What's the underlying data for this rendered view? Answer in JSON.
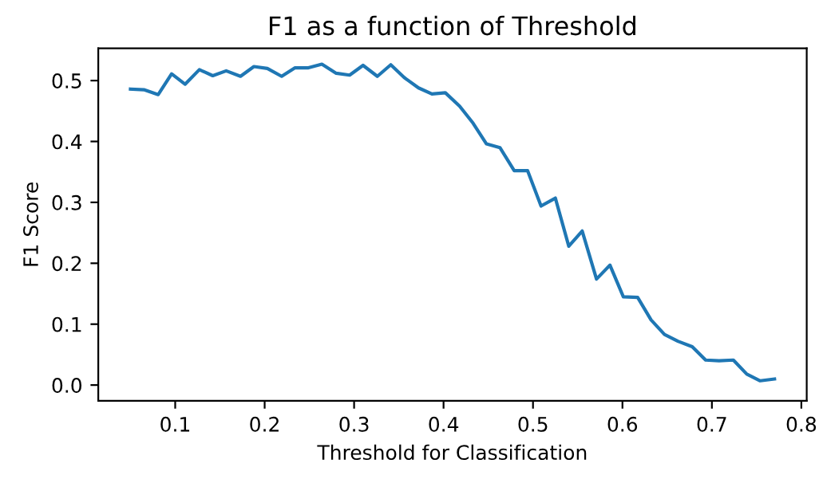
{
  "chart_data": {
    "type": "line",
    "title": "F1 as a function of Threshold",
    "xlabel": "Threshold for Classification",
    "ylabel": "F1 Score",
    "x": [
      0.05,
      0.065,
      0.081,
      0.096,
      0.111,
      0.127,
      0.142,
      0.157,
      0.173,
      0.188,
      0.203,
      0.219,
      0.234,
      0.249,
      0.264,
      0.28,
      0.295,
      0.31,
      0.326,
      0.341,
      0.356,
      0.372,
      0.387,
      0.402,
      0.418,
      0.433,
      0.448,
      0.463,
      0.479,
      0.494,
      0.509,
      0.525,
      0.54,
      0.555,
      0.571,
      0.586,
      0.601,
      0.617,
      0.632,
      0.647,
      0.662,
      0.678,
      0.693,
      0.708,
      0.724,
      0.739,
      0.754,
      0.77
    ],
    "series": [
      {
        "color": "#1f77b4",
        "values": [
          0.486,
          0.485,
          0.477,
          0.511,
          0.494,
          0.518,
          0.508,
          0.516,
          0.507,
          0.523,
          0.52,
          0.507,
          0.521,
          0.521,
          0.527,
          0.512,
          0.509,
          0.525,
          0.507,
          0.526,
          0.505,
          0.488,
          0.478,
          0.48,
          0.458,
          0.43,
          0.396,
          0.39,
          0.352,
          0.352,
          0.294,
          0.307,
          0.228,
          0.253,
          0.174,
          0.197,
          0.145,
          0.144,
          0.107,
          0.083,
          0.072,
          0.063,
          0.041,
          0.04,
          0.041,
          0.018,
          0.007,
          0.01
        ]
      }
    ],
    "xlim": [
      0.014,
      0.806
    ],
    "ylim": [
      -0.026,
      0.553
    ],
    "xticks": [
      0.1,
      0.2,
      0.3,
      0.4,
      0.5,
      0.6,
      0.7,
      0.8
    ],
    "yticks": [
      {
        "value": 0,
        "label": "0.0"
      },
      0.1,
      0.2,
      0.3,
      0.4,
      0.5
    ],
    "grid": false,
    "legend": false
  }
}
